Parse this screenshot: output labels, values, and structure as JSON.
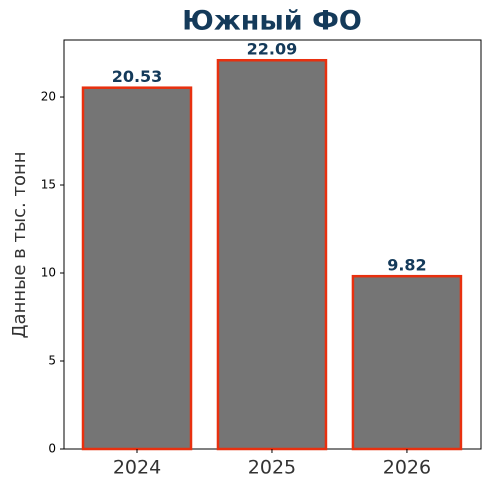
{
  "chart_data": {
    "type": "bar",
    "title": "Южный ФО",
    "y_label": "Данные в тыс. тонн",
    "categories": [
      "2024",
      "2025",
      "2026"
    ],
    "values": [
      20.53,
      22.09,
      9.82
    ],
    "color": "#757575",
    "edge_color": "#e8300f",
    "ylim": [
      0,
      23.24
    ],
    "yticks": [
      0,
      5,
      10,
      15,
      20
    ]
  }
}
